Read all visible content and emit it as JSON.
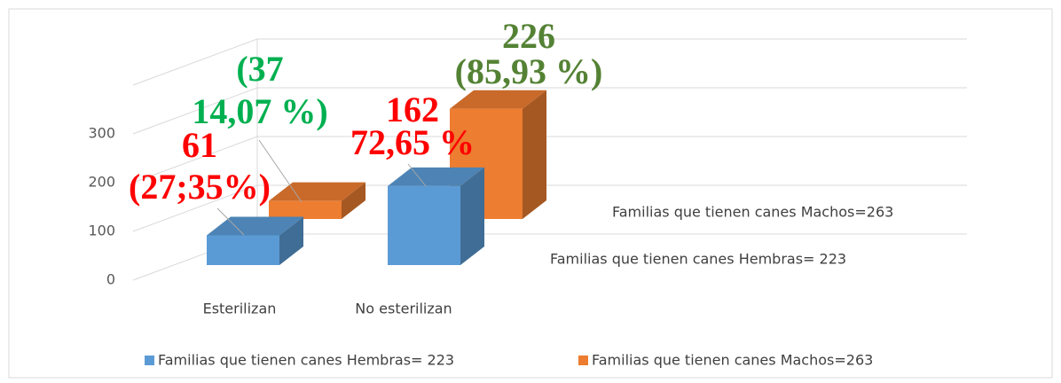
{
  "chart_data": {
    "type": "bar3d",
    "categories": [
      "Esterilizan",
      "No esterilizan"
    ],
    "series": [
      {
        "name": "Familias que tienen canes Hembras= 223",
        "color": "#5b9bd5",
        "label_color": "#ff0000",
        "values": [
          61,
          162
        ],
        "value_labels": [
          [
            "61",
            "(27;35%)"
          ],
          [
            "162",
            "72,65 %"
          ]
        ]
      },
      {
        "name": "Familias que tienen canes Machos=263",
        "color": "#ed7d31",
        "label_colors": [
          "#00b050",
          "#548235"
        ],
        "values": [
          37,
          226
        ],
        "value_labels": [
          [
            "(37",
            "14,07 %)"
          ],
          [
            "226",
            "(85,93 %)"
          ]
        ]
      }
    ],
    "ylim": [
      0,
      400
    ],
    "yticks": [
      0,
      100,
      200,
      300
    ],
    "grid": true,
    "legend": "bottom"
  }
}
